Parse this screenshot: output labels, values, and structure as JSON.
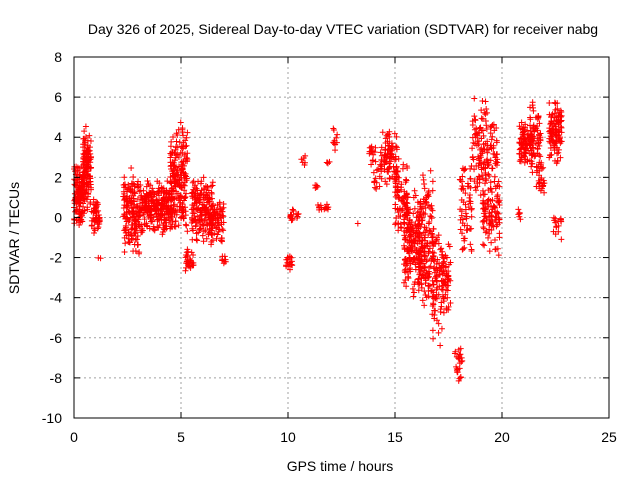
{
  "chart_data": {
    "type": "scatter",
    "title": "Day 326 of 2025, Sidereal Day-to-day VTEC variation (SDTVAR) for receiver nabg",
    "xlabel": "GPS time / hours",
    "ylabel": "SDTVAR / TECUs",
    "xlim": [
      0,
      25
    ],
    "ylim": [
      -10,
      8
    ],
    "x_ticks": [
      "0",
      "5",
      "10",
      "15",
      "20",
      "25"
    ],
    "y_ticks": [
      "-10",
      "-8",
      "-6",
      "-4",
      "-2",
      "0",
      "2",
      "4",
      "6",
      "8"
    ],
    "grid": true,
    "marker": "plus",
    "color": "#ff0000",
    "clusters": [
      {
        "x": [
          0.0,
          0.5
        ],
        "y": [
          -0.5,
          3.0
        ],
        "n": 140
      },
      {
        "x": [
          0.4,
          0.8
        ],
        "y": [
          0.0,
          4.6
        ],
        "n": 120
      },
      {
        "x": [
          0.8,
          1.2
        ],
        "y": [
          -1.0,
          1.0
        ],
        "n": 50
      },
      {
        "x": [
          1.1,
          1.3
        ],
        "y": [
          -2.1,
          -2.0
        ],
        "n": 2
      },
      {
        "x": [
          2.3,
          3.1
        ],
        "y": [
          -2.0,
          2.8
        ],
        "n": 170
      },
      {
        "x": [
          3.1,
          4.6
        ],
        "y": [
          -1.0,
          2.0
        ],
        "n": 260
      },
      {
        "x": [
          4.5,
          5.3
        ],
        "y": [
          -1.0,
          5.0
        ],
        "n": 200
      },
      {
        "x": [
          5.2,
          5.6
        ],
        "y": [
          -2.8,
          -1.5
        ],
        "n": 30
      },
      {
        "x": [
          5.5,
          6.5
        ],
        "y": [
          -1.5,
          2.2
        ],
        "n": 180
      },
      {
        "x": [
          6.4,
          7.0
        ],
        "y": [
          -1.5,
          1.2
        ],
        "n": 70
      },
      {
        "x": [
          6.9,
          7.1
        ],
        "y": [
          -2.4,
          -1.8
        ],
        "n": 8
      },
      {
        "x": [
          9.9,
          10.2
        ],
        "y": [
          -2.8,
          -1.8
        ],
        "n": 18
      },
      {
        "x": [
          10.1,
          10.5
        ],
        "y": [
          -0.3,
          0.6
        ],
        "n": 18
      },
      {
        "x": [
          10.6,
          10.8
        ],
        "y": [
          2.5,
          3.2
        ],
        "n": 6
      },
      {
        "x": [
          11.2,
          11.4
        ],
        "y": [
          1.2,
          1.8
        ],
        "n": 5
      },
      {
        "x": [
          11.4,
          11.9
        ],
        "y": [
          0.3,
          0.7
        ],
        "n": 14
      },
      {
        "x": [
          11.8,
          12.0
        ],
        "y": [
          2.6,
          2.8
        ],
        "n": 4
      },
      {
        "x": [
          12.1,
          12.3
        ],
        "y": [
          3.2,
          4.5
        ],
        "n": 10
      },
      {
        "x": [
          13.2,
          13.3
        ],
        "y": [
          -0.3,
          -0.3
        ],
        "n": 1
      },
      {
        "x": [
          13.8,
          14.1
        ],
        "y": [
          2.5,
          4.0
        ],
        "n": 16
      },
      {
        "x": [
          14.0,
          14.5
        ],
        "y": [
          1.2,
          2.6
        ],
        "n": 12
      },
      {
        "x": [
          14.3,
          15.1
        ],
        "y": [
          1.5,
          4.4
        ],
        "n": 90
      },
      {
        "x": [
          15.0,
          15.6
        ],
        "y": [
          -1.0,
          3.0
        ],
        "n": 90
      },
      {
        "x": [
          15.4,
          16.2
        ],
        "y": [
          -4.0,
          1.5
        ],
        "n": 170
      },
      {
        "x": [
          16.1,
          16.8
        ],
        "y": [
          -5.0,
          2.5
        ],
        "n": 160
      },
      {
        "x": [
          16.7,
          17.3
        ],
        "y": [
          -6.5,
          0.0
        ],
        "n": 90
      },
      {
        "x": [
          17.2,
          17.6
        ],
        "y": [
          -5.5,
          -1.0
        ],
        "n": 50
      },
      {
        "x": [
          17.8,
          18.2
        ],
        "y": [
          -8.5,
          -6.3
        ],
        "n": 25
      },
      {
        "x": [
          18.0,
          18.6
        ],
        "y": [
          -2.5,
          3.0
        ],
        "n": 60
      },
      {
        "x": [
          18.6,
          19.3
        ],
        "y": [
          1.0,
          6.2
        ],
        "n": 90
      },
      {
        "x": [
          19.1,
          19.9
        ],
        "y": [
          -2.0,
          2.5
        ],
        "n": 110
      },
      {
        "x": [
          19.3,
          19.8
        ],
        "y": [
          2.0,
          5.0
        ],
        "n": 40
      },
      {
        "x": [
          20.7,
          20.9
        ],
        "y": [
          -0.6,
          0.8
        ],
        "n": 6
      },
      {
        "x": [
          20.8,
          21.5
        ],
        "y": [
          2.4,
          4.9
        ],
        "n": 90
      },
      {
        "x": [
          21.3,
          21.8
        ],
        "y": [
          2.0,
          5.9
        ],
        "n": 60
      },
      {
        "x": [
          21.6,
          22.0
        ],
        "y": [
          1.0,
          3.0
        ],
        "n": 30
      },
      {
        "x": [
          22.2,
          22.8
        ],
        "y": [
          2.5,
          6.0
        ],
        "n": 110
      },
      {
        "x": [
          22.4,
          22.8
        ],
        "y": [
          -1.2,
          0.5
        ],
        "n": 16
      }
    ]
  }
}
